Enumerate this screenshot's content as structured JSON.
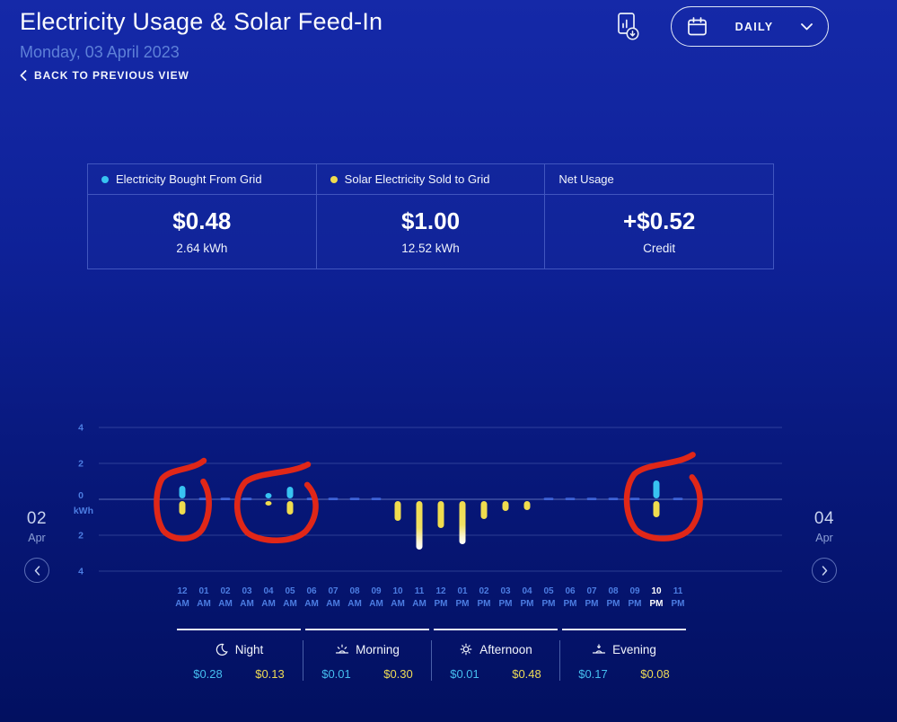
{
  "colors": {
    "background_top": "#1529A8",
    "background_bottom": "#021060",
    "bought_accent": "#38C3F1",
    "sold_accent": "#F0DC4E",
    "annotation_red": "#E02718",
    "axis_label_blue": "#4C7DE2"
  },
  "header": {
    "title": "Electricity Usage & Solar Feed-In",
    "date": "Monday, 03 April 2023",
    "back_label": "BACK TO PREVIOUS VIEW",
    "period_label": "DAILY"
  },
  "summary": {
    "cards": [
      {
        "label": "Electricity Bought From Grid",
        "dot": "#38C3F1",
        "value": "$0.48",
        "sub": "2.64 kWh"
      },
      {
        "label": "Solar Electricity Sold to Grid",
        "dot": "#F0DC4E",
        "value": "$1.00",
        "sub": "12.52 kWh"
      },
      {
        "label": "Net Usage",
        "dot": null,
        "value": "+$0.52",
        "sub": "Credit"
      }
    ]
  },
  "nav": {
    "prev": {
      "day": "02",
      "month": "Apr"
    },
    "next": {
      "day": "04",
      "month": "Apr"
    }
  },
  "chart_data": {
    "type": "bar",
    "orientation": "diverging-vertical",
    "title": "",
    "ylabel_unit": "kWh",
    "ylim": [
      -4,
      4
    ],
    "ytick_labels": [
      "4",
      "2",
      "0",
      "2",
      "4"
    ],
    "grid": true,
    "categories": [
      "12 AM",
      "01 AM",
      "02 AM",
      "03 AM",
      "04 AM",
      "05 AM",
      "06 AM",
      "07 AM",
      "08 AM",
      "09 AM",
      "10 AM",
      "11 AM",
      "12 PM",
      "01 PM",
      "02 PM",
      "03 PM",
      "04 PM",
      "05 PM",
      "06 PM",
      "07 PM",
      "08 PM",
      "09 PM",
      "10 PM",
      "11 PM"
    ],
    "highlighted_category": "10 PM",
    "series": [
      {
        "name": "Electricity Bought From Grid",
        "color": "#38C3F1",
        "direction": "up",
        "values": [
          0.7,
          null,
          null,
          null,
          0.3,
          0.65,
          null,
          null,
          null,
          null,
          null,
          null,
          null,
          null,
          null,
          null,
          null,
          null,
          null,
          null,
          null,
          null,
          1.0,
          null
        ]
      },
      {
        "name": "Solar Electricity Sold to Grid",
        "color": "#F0DC4E",
        "direction": "down",
        "values": [
          0.75,
          null,
          null,
          null,
          0.25,
          0.75,
          null,
          null,
          null,
          null,
          1.1,
          2.7,
          1.5,
          2.4,
          1.0,
          0.55,
          0.5,
          null,
          null,
          null,
          null,
          null,
          0.9,
          null
        ]
      }
    ],
    "no_data_marker": "dash",
    "annotations": [
      {
        "type": "hand-drawn-circle",
        "color": "#E02718",
        "around": "12 AM"
      },
      {
        "type": "hand-drawn-circle",
        "color": "#E02718",
        "around": "04 AM|05 AM"
      },
      {
        "type": "hand-drawn-circle",
        "color": "#E02718",
        "around": "10 PM"
      }
    ]
  },
  "periods": {
    "items": [
      {
        "label": "Night",
        "icon": "moon-icon",
        "bought": "$0.28",
        "sold": "$0.13"
      },
      {
        "label": "Morning",
        "icon": "sunrise-icon",
        "bought": "$0.01",
        "sold": "$0.30"
      },
      {
        "label": "Afternoon",
        "icon": "sun-icon",
        "bought": "$0.01",
        "sold": "$0.48"
      },
      {
        "label": "Evening",
        "icon": "sunset-icon",
        "bought": "$0.17",
        "sold": "$0.08"
      }
    ]
  }
}
